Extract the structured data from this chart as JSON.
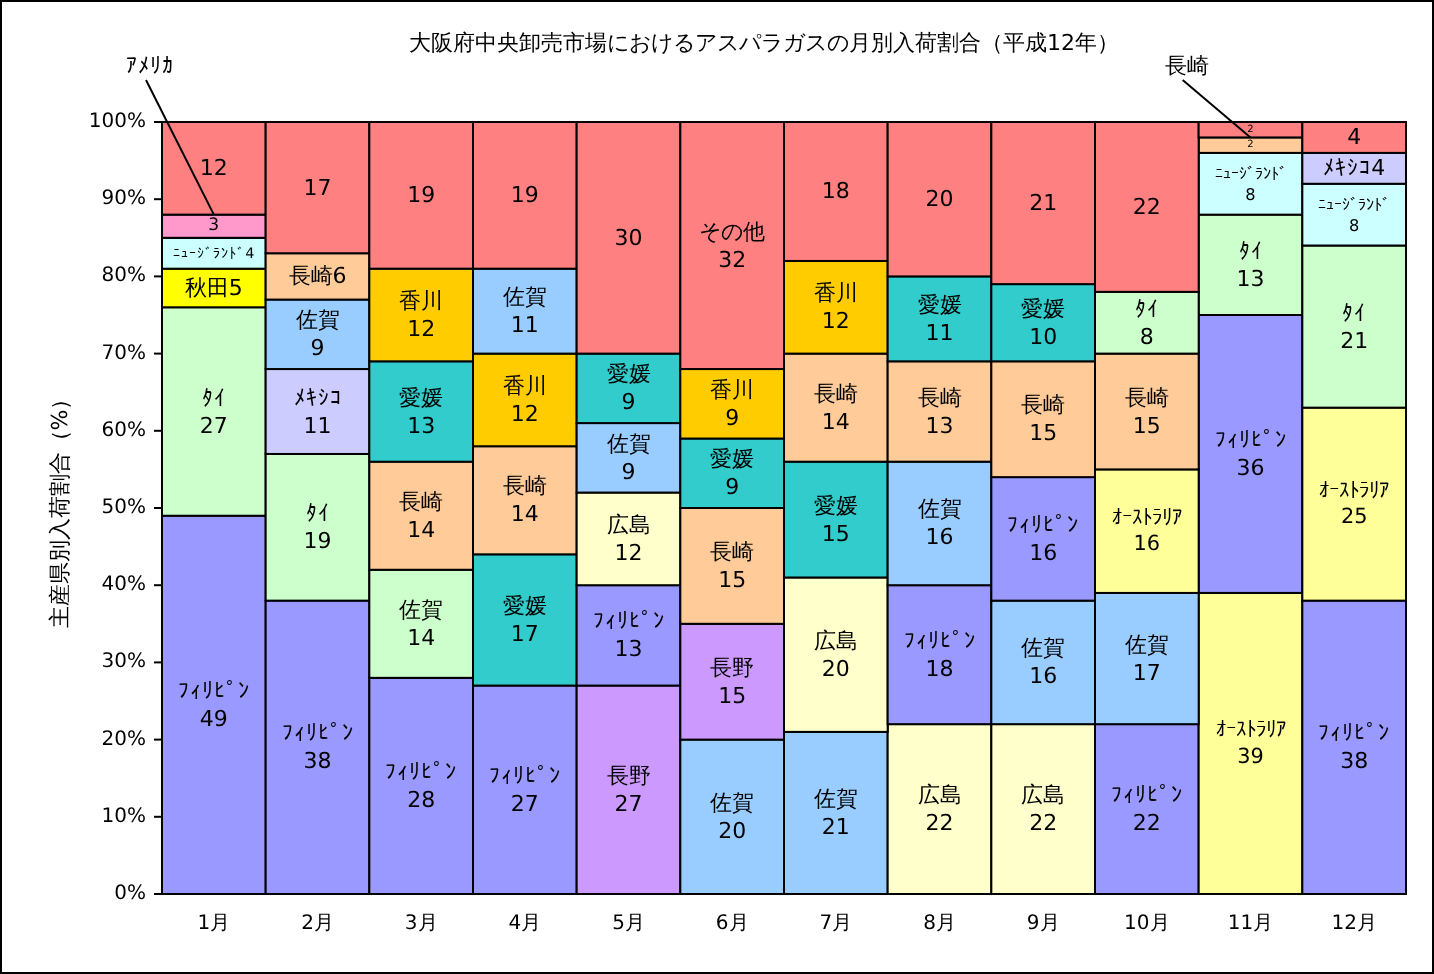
{
  "chart_data": {
    "type": "bar",
    "stacked": true,
    "title": "大阪府中央卸売市場におけるアスパラガスの月別入荷割合（平成12年）",
    "ylabel": "主産県別入荷割合（%）",
    "categories": [
      "1月",
      "2月",
      "3月",
      "4月",
      "5月",
      "6月",
      "7月",
      "8月",
      "9月",
      "10月",
      "11月",
      "12月"
    ],
    "ylim": [
      0,
      100
    ],
    "yticks": [
      {
        "value": 0,
        "label": "0%"
      },
      {
        "value": 10,
        "label": "10%"
      },
      {
        "value": 20,
        "label": "20%"
      },
      {
        "value": 30,
        "label": "30%"
      },
      {
        "value": 40,
        "label": "40%"
      },
      {
        "value": 50,
        "label": "50%"
      },
      {
        "value": 60,
        "label": "60%"
      },
      {
        "value": 70,
        "label": "70%"
      },
      {
        "value": 80,
        "label": "80%"
      },
      {
        "value": 90,
        "label": "90%"
      },
      {
        "value": 100,
        "label": "100%"
      }
    ],
    "series": [
      {
        "values": [
          49,
          38,
          28,
          27,
          27,
          20,
          21,
          22,
          22,
          22,
          39,
          38
        ],
        "colors": [
          "#9999ff",
          "#9999ff",
          "#9999ff",
          "#9999ff",
          "#cc99ff",
          "#99ccff",
          "#99ccff",
          "#ffffcc",
          "#ffffcc",
          "#9999ff",
          "#ffff99",
          "#9999ff"
        ],
        "value_labels": [
          "ﾌｨﾘﾋﾟﾝ\n49",
          "ﾌｨﾘﾋﾟﾝ\n38",
          "ﾌｨﾘﾋﾟﾝ\n28",
          "ﾌｨﾘﾋﾟﾝ\n27",
          "長野\n27",
          "佐賀\n20",
          "佐賀\n21",
          "広島\n22",
          "広島\n22",
          "ﾌｨﾘﾋﾟﾝ\n22",
          "ｵｰｽﾄﾗﾘｱ\n39",
          "ﾌｨﾘﾋﾟﾝ\n38"
        ]
      },
      {
        "values": [
          27,
          19,
          14,
          17,
          13,
          15,
          20,
          18,
          16,
          17,
          36,
          25
        ],
        "colors": [
          "#ccffcc",
          "#ccffcc",
          "#ccffcc",
          "#33cccc",
          "#9999ff",
          "#cc99ff",
          "#ffffcc",
          "#9999ff",
          "#99ccff",
          "#99ccff",
          "#9999ff",
          "#ffff99"
        ],
        "value_labels": [
          "ﾀｲ\n27",
          "ﾀｲ\n19",
          "佐賀\n14",
          "愛媛\n17",
          "ﾌｨﾘﾋﾟﾝ\n13",
          "長野\n15",
          "広島\n20",
          "ﾌｨﾘﾋﾟﾝ\n18",
          "佐賀\n16",
          "佐賀\n17",
          "ﾌｨﾘﾋﾟﾝ\n36",
          "ｵｰｽﾄﾗﾘｱ\n25"
        ]
      },
      {
        "values": [
          5,
          11,
          14,
          14,
          12,
          15,
          15,
          16,
          16,
          16,
          13,
          21
        ],
        "colors": [
          "#ffff00",
          "#ccccff",
          "#ffcc99",
          "#ffcc99",
          "#ffffcc",
          "#ffcc99",
          "#33cccc",
          "#99ccff",
          "#9999ff",
          "#ffff99",
          "#ccffcc",
          "#ccffcc"
        ],
        "value_labels": [
          "秋田5",
          "ﾒｷｼｺ\n11",
          "長崎\n14",
          "長崎\n14",
          "広島\n12",
          "長崎\n15",
          "愛媛\n15",
          "佐賀\n16",
          "ﾌｨﾘﾋﾟﾝ\n16",
          "ｵｰｽﾄﾗﾘｱ\n16",
          "ﾀｲ\n13",
          "ﾀｲ\n21"
        ]
      },
      {
        "values": [
          4,
          9,
          13,
          12,
          9,
          9,
          14,
          13,
          15,
          15,
          8,
          8
        ],
        "colors": [
          "#ccffff",
          "#99ccff",
          "#33cccc",
          "#ffcc00",
          "#99ccff",
          "#33cccc",
          "#ffcc99",
          "#ffcc99",
          "#ffcc99",
          "#ffcc99",
          "#ccffff",
          "#ccffff"
        ],
        "value_labels": [
          "ﾆｭｰｼﾞﾗﾝﾄﾞ4",
          "佐賀\n9",
          "愛媛\n13",
          "香川\n12",
          "佐賀\n9",
          "愛媛\n9",
          "長崎\n14",
          "長崎\n13",
          "長崎\n15",
          "長崎\n15",
          "ﾆｭｰｼﾞﾗﾝﾄﾞ\n8",
          "ﾆｭｰｼﾞﾗﾝﾄﾞ\n8"
        ]
      },
      {
        "values": [
          3,
          6,
          12,
          11,
          9,
          9,
          12,
          11,
          10,
          8,
          2,
          4
        ],
        "colors": [
          "#ff99cc",
          "#ffcc99",
          "#ffcc00",
          "#99ccff",
          "#33cccc",
          "#ffcc00",
          "#ffcc00",
          "#33cccc",
          "#33cccc",
          "#ccffcc",
          "#ffcc99",
          "#ccccff"
        ],
        "value_labels": [
          "3",
          "長崎6",
          "香川\n12",
          "佐賀\n11",
          "愛媛\n9",
          "香川\n9",
          "香川\n12",
          "愛媛\n11",
          "愛媛\n10",
          "ﾀｲ\n8",
          "2",
          "ﾒｷｼｺ4"
        ]
      },
      {
        "values": [
          12,
          17,
          19,
          19,
          30,
          32,
          18,
          20,
          21,
          22,
          2,
          4
        ],
        "color": "#ff8080",
        "value_labels": [
          "12",
          "17",
          "19",
          "19",
          "30",
          "その他\n32",
          "18",
          "20",
          "21",
          "22",
          "2",
          "4"
        ]
      }
    ],
    "annotations": [
      {
        "text": "ｱﾒﾘｶ",
        "x": "1月",
        "y": 88
      },
      {
        "text": "長崎",
        "x": "11月",
        "y": 98
      }
    ]
  }
}
